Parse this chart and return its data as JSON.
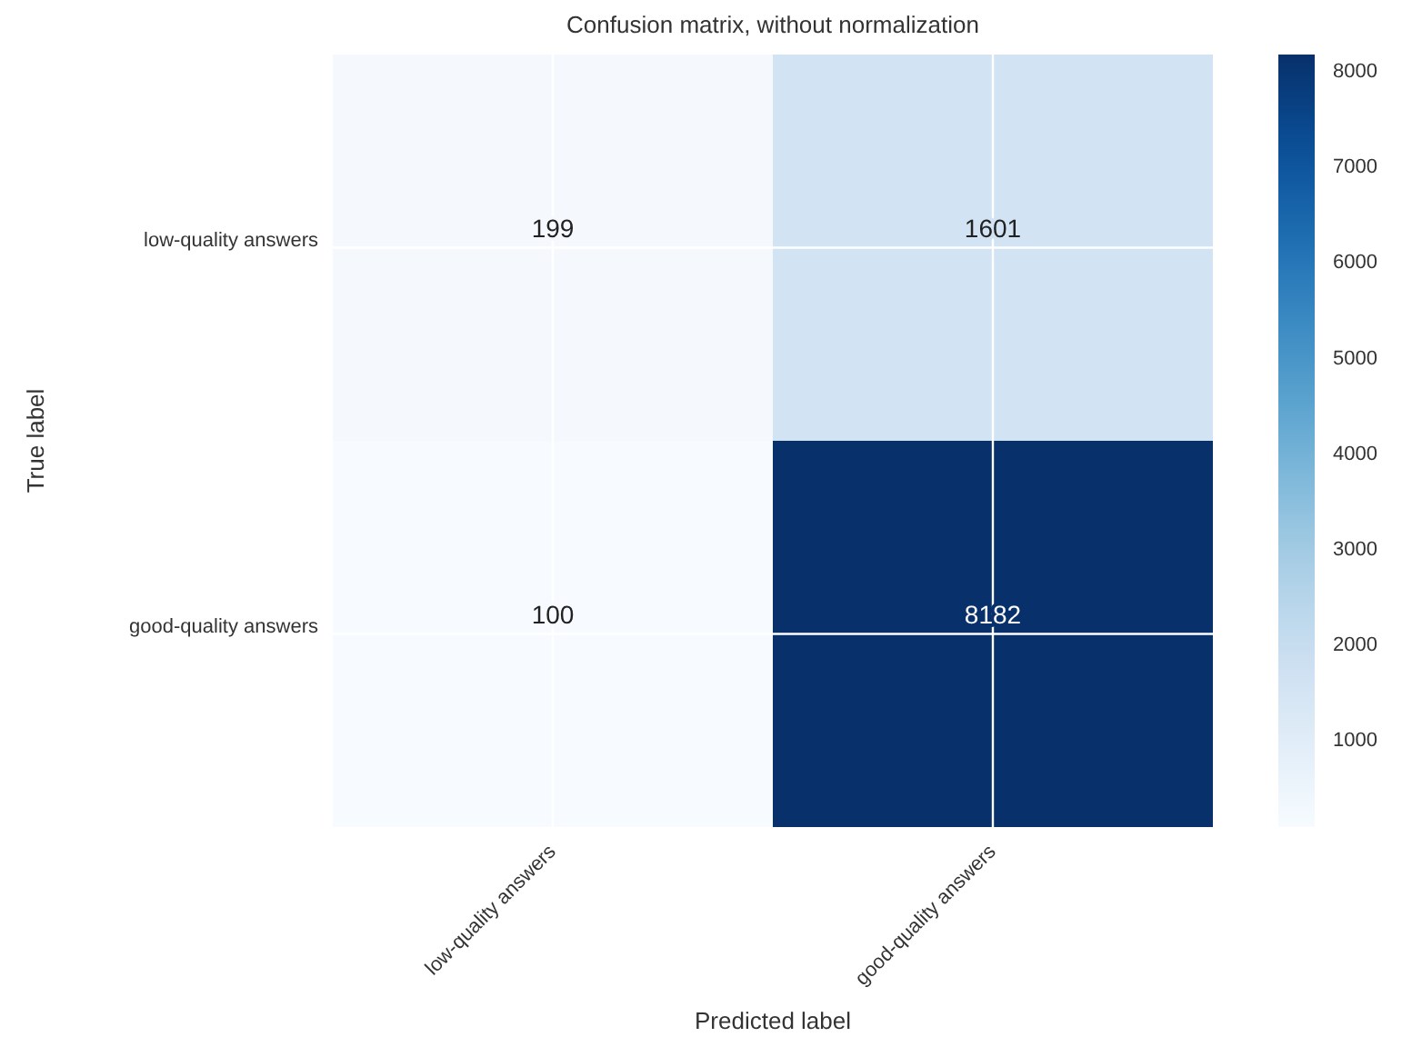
{
  "chart_data": {
    "type": "heatmap",
    "title": "Confusion matrix, without normalization",
    "xlabel": "Predicted label",
    "ylabel": "True label",
    "categories": [
      "low-quality answers",
      "good-quality answers"
    ],
    "y_categories": [
      "low-quality answers",
      "good-quality answers"
    ],
    "cells": [
      [
        199,
        1601
      ],
      [
        100,
        8182
      ]
    ],
    "data_labels": true,
    "grid": true,
    "clim": [
      100,
      8182
    ],
    "cticks": [
      1000,
      2000,
      3000,
      4000,
      5000,
      6000,
      7000,
      8000
    ]
  }
}
